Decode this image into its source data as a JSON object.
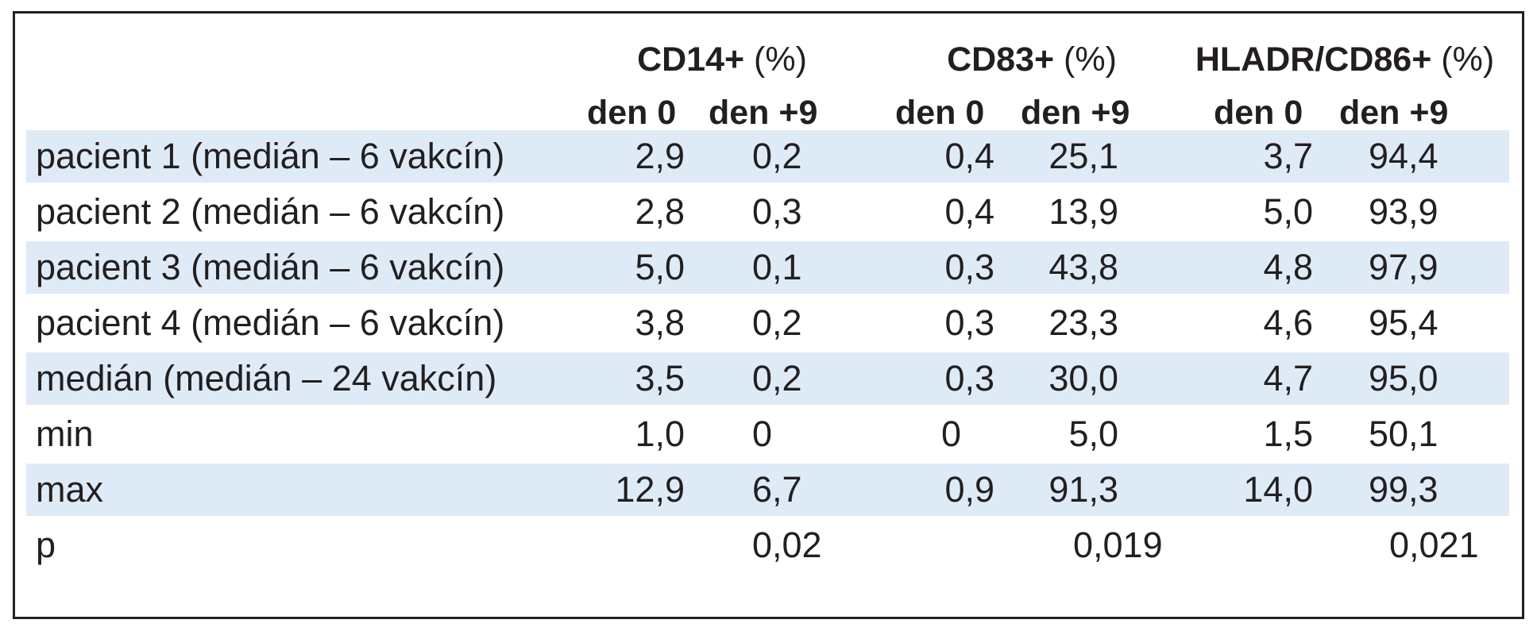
{
  "table": {
    "groups": [
      {
        "name": "CD14+",
        "unit": " (%)"
      },
      {
        "name": "CD83+",
        "unit": " (%)"
      },
      {
        "name": "HLADR/CD86+",
        "unit": " (%)"
      }
    ],
    "subheaders": [
      "den 0",
      "den +9",
      "den 0",
      "den +9",
      "den 0",
      "den +9"
    ],
    "rows": [
      {
        "label": "pacient 1 (medián – 6 vakcín)",
        "values": [
          "2,9",
          "0,2",
          "0,4",
          "25,1",
          "3,7",
          "94,4"
        ]
      },
      {
        "label": "pacient 2 (medián – 6 vakcín)",
        "values": [
          "2,8",
          "0,3",
          "0,4",
          "13,9",
          "5,0",
          "93,9"
        ]
      },
      {
        "label": "pacient 3 (medián – 6 vakcín)",
        "values": [
          "5,0",
          "0,1",
          "0,3",
          "43,8",
          "4,8",
          "97,9"
        ]
      },
      {
        "label": "pacient 4 (medián – 6 vakcín)",
        "values": [
          "3,8",
          "0,2",
          "0,3",
          "23,3",
          "4,6",
          "95,4"
        ]
      },
      {
        "label": "medián (medián – 24 vakcín)",
        "values": [
          "3,5",
          "0,2",
          "0,3",
          "30,0",
          "4,7",
          "95,0"
        ]
      },
      {
        "label": "min",
        "values": [
          "1,0",
          "0",
          "0",
          "5,0",
          "1,5",
          "50,1"
        ]
      },
      {
        "label": "max",
        "values": [
          "12,9",
          "6,7",
          "0,9",
          "91,3",
          "14,0",
          "99,3"
        ]
      }
    ],
    "p_row": {
      "label": "p",
      "values": [
        "0,02",
        "0,019",
        "0,021"
      ]
    },
    "colors": {
      "row_shade": "#deebf7",
      "border": "#231f20",
      "text": "#231f20"
    }
  }
}
